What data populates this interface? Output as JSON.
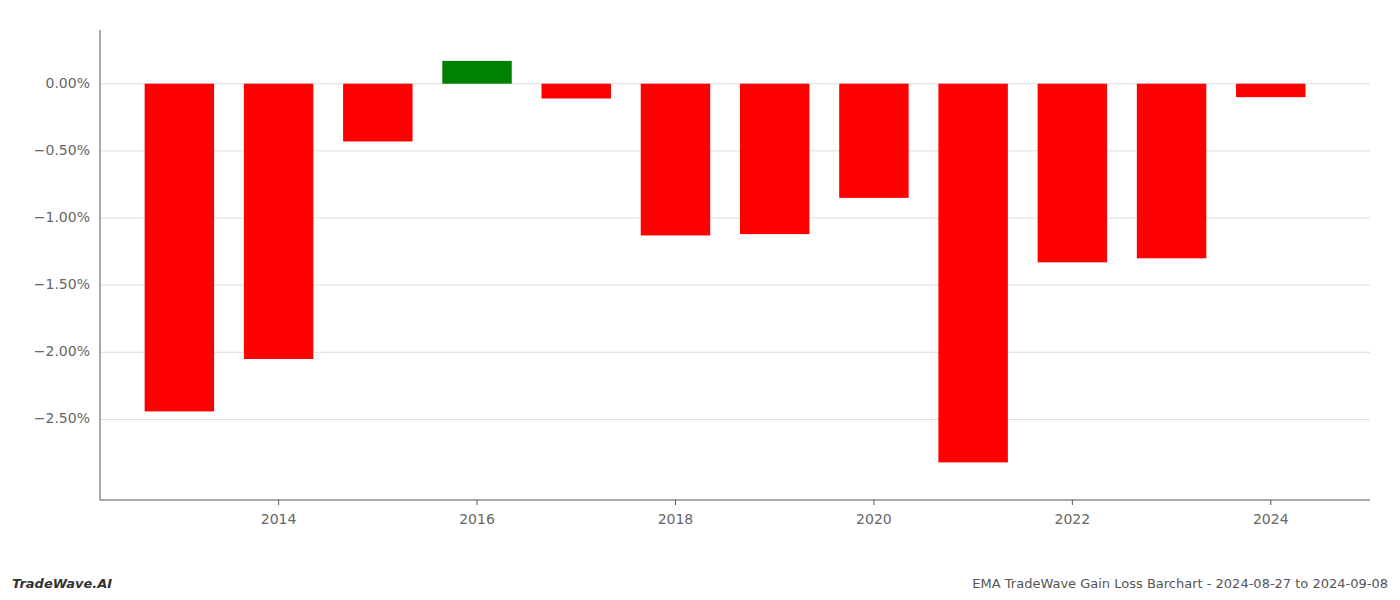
{
  "chart_data": {
    "type": "bar",
    "x": [
      2013,
      2014,
      2015,
      2016,
      2017,
      2018,
      2019,
      2020,
      2021,
      2022,
      2023,
      2024
    ],
    "values": [
      -2.44,
      -2.05,
      -0.43,
      0.17,
      -0.11,
      -1.13,
      -1.12,
      -0.85,
      -2.82,
      -1.33,
      -1.3,
      -0.1
    ],
    "colors": [
      "#ff0000",
      "#ff0000",
      "#ff0000",
      "#008000",
      "#ff0000",
      "#ff0000",
      "#ff0000",
      "#ff0000",
      "#ff0000",
      "#ff0000",
      "#ff0000",
      "#ff0000"
    ],
    "xlim": [
      2012.2,
      2025.0
    ],
    "xticks": [
      2014,
      2016,
      2018,
      2020,
      2022,
      2024
    ],
    "ylim": [
      -3.1,
      0.4
    ],
    "yticks": [
      {
        "value": 0.0,
        "label": "0.00%"
      },
      {
        "value": -0.5,
        "label": "−0.50%"
      },
      {
        "value": -1.0,
        "label": "−1.00%"
      },
      {
        "value": -1.5,
        "label": "−1.50%"
      },
      {
        "value": -2.0,
        "label": "−2.00%"
      },
      {
        "value": -2.5,
        "label": "−2.50%"
      }
    ],
    "grid": true,
    "annotations": [
      "TradeWave.AI",
      "EMA TradeWave Gain Loss Barchart - 2024-08-27 to 2024-09-08"
    ]
  }
}
